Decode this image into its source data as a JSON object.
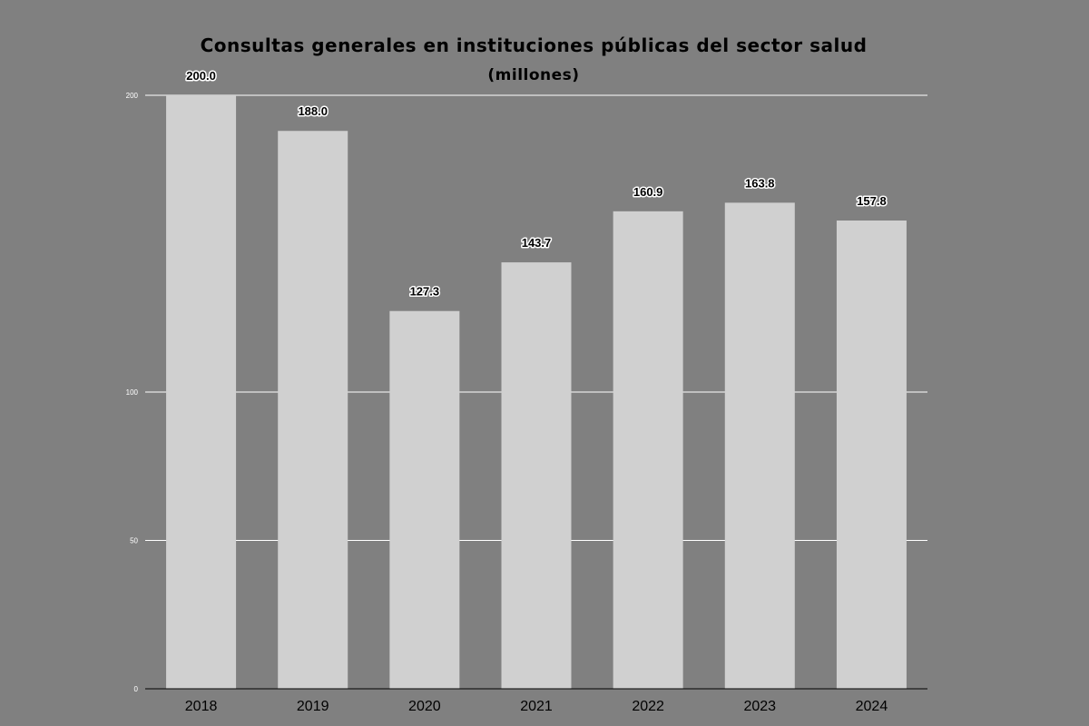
{
  "chart_data": {
    "type": "bar",
    "title": "Consultas generales en instituciones públicas del sector salud",
    "subtitle": "(millones)",
    "xlabel": "",
    "ylabel": "",
    "categories": [
      "2018",
      "2019",
      "2020",
      "2021",
      "2022",
      "2023",
      "2024"
    ],
    "values": [
      200.0,
      188.0,
      127.3,
      143.7,
      160.9,
      163.8,
      157.8
    ],
    "value_labels": [
      "200.0",
      "188.0",
      "127.3",
      "143.7",
      "160.9",
      "163.8",
      "157.8"
    ],
    "ylim": [
      0,
      200
    ],
    "gridlines": [
      200,
      100,
      50,
      0
    ],
    "grid": true,
    "legend": "none",
    "colors": {
      "background": "#808080",
      "bar": "#d0d0d0",
      "grid": "#ffffff",
      "text": "#000000"
    }
  }
}
